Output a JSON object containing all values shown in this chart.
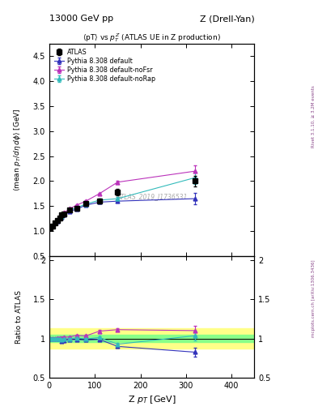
{
  "title_left": "13000 GeV pp",
  "title_right": "Z (Drell-Yan)",
  "plot_title": "<pT> vs $p_T^Z$ (ATLAS UE in Z production)",
  "ylabel_main": "<mean p_{T}/dη dφ> [GeV]",
  "ylabel_ratio": "Ratio to ATLAS",
  "xlabel": "Z p_{T} [GeV]",
  "right_label": "mcplots.cern.ch [arXiv:1306.3436]",
  "right_label2": "Rivet 3.1.10, ≥ 3.2M events",
  "watermark": "ATLAS_2019_I1736531",
  "atlas_x": [
    2.5,
    7.5,
    12.5,
    17.5,
    22.5,
    27.5,
    32.5,
    45.0,
    60.0,
    80.0,
    110.0,
    150.0,
    320.0
  ],
  "atlas_y": [
    1.07,
    1.1,
    1.16,
    1.21,
    1.27,
    1.32,
    1.35,
    1.42,
    1.46,
    1.55,
    1.6,
    1.78,
    2.0
  ],
  "atlas_yerr": [
    0.02,
    0.02,
    0.02,
    0.02,
    0.02,
    0.02,
    0.02,
    0.03,
    0.03,
    0.04,
    0.05,
    0.07,
    0.1
  ],
  "py_default_x": [
    2.5,
    7.5,
    12.5,
    17.5,
    22.5,
    27.5,
    32.5,
    45.0,
    60.0,
    80.0,
    110.0,
    150.0,
    320.0
  ],
  "py_default_y": [
    1.07,
    1.1,
    1.16,
    1.2,
    1.26,
    1.28,
    1.32,
    1.4,
    1.44,
    1.52,
    1.58,
    1.6,
    1.65
  ],
  "py_default_yerr": [
    0.01,
    0.01,
    0.01,
    0.01,
    0.01,
    0.01,
    0.01,
    0.01,
    0.01,
    0.02,
    0.02,
    0.03,
    0.12
  ],
  "py_nofsr_x": [
    2.5,
    7.5,
    12.5,
    17.5,
    22.5,
    27.5,
    32.5,
    45.0,
    60.0,
    80.0,
    110.0,
    150.0,
    320.0
  ],
  "py_nofsr_y": [
    1.07,
    1.1,
    1.16,
    1.22,
    1.28,
    1.33,
    1.37,
    1.45,
    1.52,
    1.6,
    1.75,
    1.98,
    2.2
  ],
  "py_nofsr_yerr": [
    0.01,
    0.01,
    0.01,
    0.01,
    0.01,
    0.01,
    0.01,
    0.01,
    0.01,
    0.02,
    0.02,
    0.03,
    0.12
  ],
  "py_norap_x": [
    2.5,
    7.5,
    12.5,
    17.5,
    22.5,
    27.5,
    32.5,
    45.0,
    60.0,
    80.0,
    110.0,
    150.0,
    320.0
  ],
  "py_norap_y": [
    1.07,
    1.1,
    1.16,
    1.21,
    1.27,
    1.3,
    1.34,
    1.42,
    1.47,
    1.54,
    1.62,
    1.65,
    2.07
  ],
  "py_norap_yerr": [
    0.01,
    0.01,
    0.01,
    0.01,
    0.01,
    0.01,
    0.01,
    0.01,
    0.01,
    0.02,
    0.02,
    0.03,
    0.12
  ],
  "color_atlas": "#000000",
  "color_default": "#3333bb",
  "color_nofsr": "#bb33bb",
  "color_norap": "#33bbbb",
  "xlim": [
    0,
    450
  ],
  "ylim_main": [
    0.5,
    4.75
  ],
  "ylim_ratio": [
    0.5,
    2.05
  ],
  "band_green_halfwidth": 0.05,
  "band_yellow_halfwidth": 0.13
}
